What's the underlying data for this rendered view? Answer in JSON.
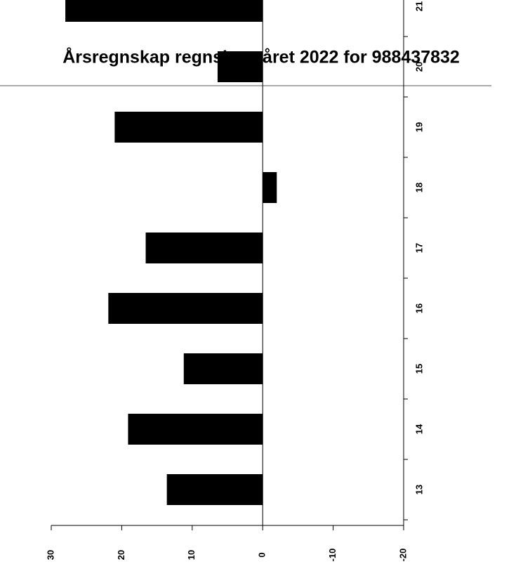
{
  "title": "Årsregnskap regnskapsåret 2022 for 988437832",
  "chart_data": {
    "type": "bar",
    "orientation": "horizontal",
    "categories": [
      "13",
      "14",
      "15",
      "16",
      "17",
      "18",
      "19",
      "20",
      "21"
    ],
    "values": [
      13.6,
      19.1,
      11.2,
      21.9,
      16.6,
      -2,
      21,
      6.4,
      28
    ],
    "color": "#000000",
    "xlim": [
      30,
      -20
    ],
    "xticks": [
      30,
      20,
      10,
      0,
      -10,
      -20
    ]
  }
}
